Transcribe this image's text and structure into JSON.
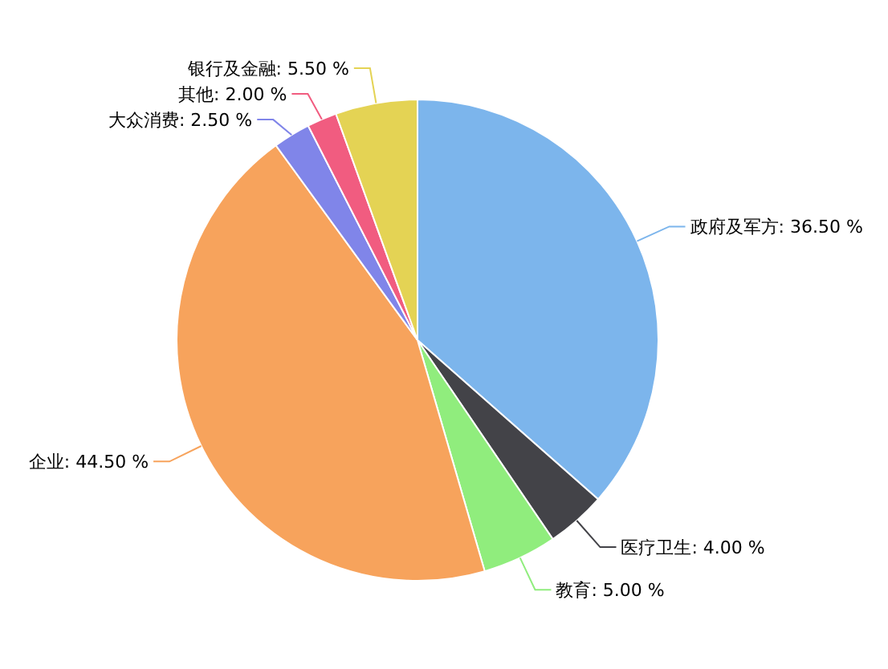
{
  "chart_data": {
    "type": "pie",
    "categories": [
      "政府及军方",
      "医疗卫生",
      "教育",
      "企业",
      "大众消费",
      "其他",
      "银行及金融"
    ],
    "values": [
      36.5,
      4.0,
      5.0,
      44.5,
      2.5,
      2.0,
      5.5
    ],
    "value_labels": [
      "36.50 %",
      "4.00 %",
      "5.00 %",
      "44.50 %",
      "2.50 %",
      "2.00 %",
      "5.50 %"
    ],
    "colors": [
      "#7cb5ec",
      "#434348",
      "#90ed7d",
      "#f7a35c",
      "#8085e9",
      "#f15c80",
      "#e4d354"
    ]
  }
}
